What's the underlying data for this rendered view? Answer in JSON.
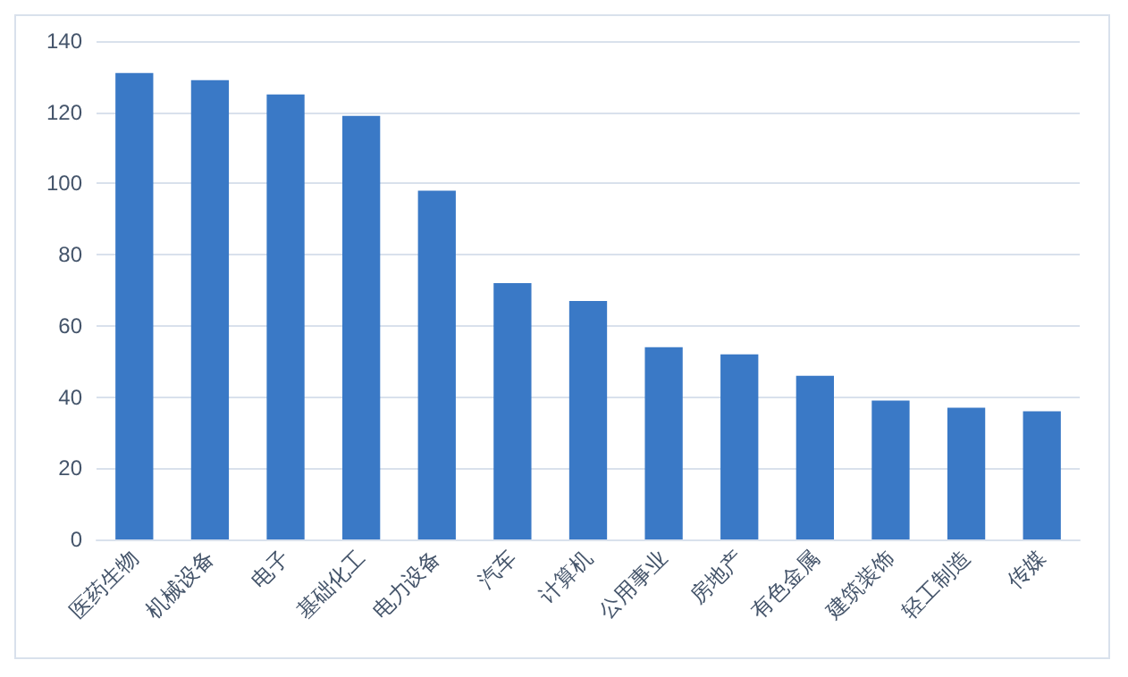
{
  "chart_data": {
    "type": "bar",
    "categories": [
      "医药生物",
      "机械设备",
      "电子",
      "基础化工",
      "电力设备",
      "汽车",
      "计算机",
      "公用事业",
      "房地产",
      "有色金属",
      "建筑装饰",
      "轻工制造",
      "传媒"
    ],
    "values": [
      131,
      129,
      125,
      119,
      98,
      72,
      67,
      54,
      52,
      46,
      39,
      37,
      36
    ],
    "color": "#3a79c6",
    "ylim": [
      0,
      140
    ],
    "yticks": [
      0,
      20,
      40,
      60,
      80,
      100,
      120,
      140
    ],
    "grid": "y"
  }
}
